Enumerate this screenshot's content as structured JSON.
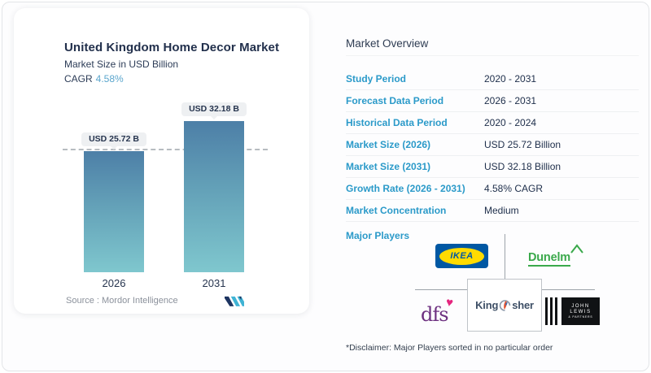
{
  "left_card": {
    "title": "United Kingdom Home Decor Market",
    "subtitle": "Market Size in USD Billion",
    "cagr_label": "CAGR",
    "cagr_value": "4.58%",
    "source_label": "Source :  Mordor Intelligence"
  },
  "chart_data": {
    "type": "bar",
    "title": "United Kingdom Home Decor Market",
    "ylabel": "Market Size in USD Billion",
    "categories": [
      "2026",
      "2031"
    ],
    "values": [
      25.72,
      32.18
    ],
    "bar_labels": [
      "USD 25.72 B",
      "USD 32.18 B"
    ],
    "reference_line_at": 25.72,
    "legend": "none",
    "grid": "off",
    "colors": {
      "bar_gradient_top": "#4d7fa7",
      "bar_gradient_bottom": "#7fc7ce",
      "reference_line": "#b7bcc1"
    }
  },
  "overview": {
    "title": "Market Overview",
    "rows": [
      {
        "label": "Study Period",
        "value": "2020 - 2031"
      },
      {
        "label": "Forecast Data Period",
        "value": "2026 - 2031"
      },
      {
        "label": "Historical Data Period",
        "value": "2020 - 2024"
      },
      {
        "label": "Market Size (2026)",
        "value": "USD 25.72 Billion"
      },
      {
        "label": "Market Size (2031)",
        "value": "USD 32.18 Billion"
      },
      {
        "label": "Growth Rate (2026 - 2031)",
        "value": "4.58% CAGR"
      },
      {
        "label": "Market Concentration",
        "value": "Medium"
      }
    ],
    "major_players_label": "Major Players",
    "players": [
      "IKEA",
      "Dunelm",
      "dfs",
      "Kingfisher",
      "John Lewis & Partners"
    ],
    "disclaimer": "*Disclaimer: Major Players sorted in no particular order"
  },
  "brands": {
    "ikea": "IKEA",
    "dunelm": "Dunelm",
    "dfs": "dfs",
    "kingfisher_prefix": "King",
    "kingfisher_suffix": "sher",
    "john_lewis_line1": "JOHN",
    "john_lewis_line2": "LEWIS",
    "john_lewis_line3": "& PARTNERS"
  },
  "colors": {
    "label_blue": "#2b9ac9",
    "value_navy": "#20304c",
    "cagr_blue": "#5ba6cd",
    "ikea_blue": "#0058a3",
    "ikea_yellow": "#ffdb00",
    "dunelm_green": "#3aa94b",
    "dfs_purple": "#6d3080",
    "dfs_heart_pink": "#e5267e",
    "john_lewis_black": "#101214"
  }
}
